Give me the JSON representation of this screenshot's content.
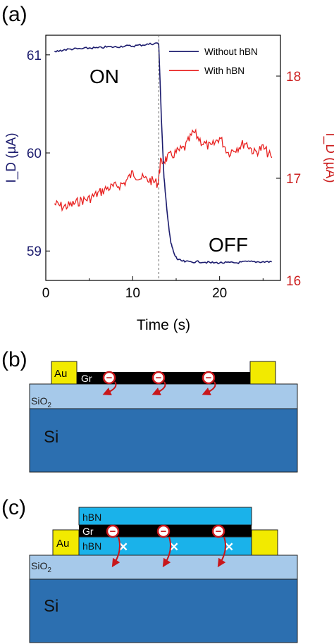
{
  "panel_labels": {
    "a": "(a)",
    "b": "(b)",
    "c": "(c)"
  },
  "colors": {
    "left_axis": "#1c1c6e",
    "right_axis": "#cc1f1f",
    "without_hbn": "#1c1c6e",
    "with_hbn": "#e8201f",
    "si": "#2c6fb0",
    "sio2": "#a6c9ea",
    "hbn": "#1ab2ea",
    "graphene": "#000000",
    "au": "#f2ea00",
    "electron": "#c8171b"
  },
  "chart_data": {
    "type": "line",
    "xlabel": "Time (s)",
    "ylabel_left": "I_D (µA)",
    "ylabel_right": "I_D (µA)",
    "xlim": [
      0,
      27
    ],
    "ylim_left": [
      58.7,
      61.2
    ],
    "ylim_right": [
      16.0,
      18.4
    ],
    "x_ticks": [
      "0",
      "10",
      "20"
    ],
    "y_left_ticks": [
      "59",
      "60",
      "61"
    ],
    "y_right_ticks": [
      "16",
      "17",
      "18"
    ],
    "annotations": {
      "on": "ON",
      "off": "OFF"
    },
    "switch_time": 13,
    "legend_position": "top-right",
    "series": [
      {
        "name": "Without hBN",
        "axis": "left",
        "x": [
          1,
          2,
          3,
          4,
          5,
          6,
          7,
          8,
          9,
          10,
          11,
          12,
          12.9,
          13.0,
          13.3,
          13.6,
          14.0,
          14.4,
          14.8,
          15.2,
          16,
          17,
          18,
          19,
          20,
          21,
          22,
          23,
          24,
          25,
          26
        ],
        "y": [
          61.03,
          61.05,
          61.06,
          61.06,
          61.07,
          61.07,
          61.08,
          61.08,
          61.09,
          61.09,
          61.1,
          61.11,
          61.12,
          61.1,
          60.35,
          59.75,
          59.35,
          59.08,
          58.96,
          58.91,
          58.89,
          58.89,
          58.89,
          58.88,
          58.88,
          58.88,
          58.88,
          58.89,
          58.89,
          58.89,
          58.89
        ]
      },
      {
        "name": "With hBN",
        "axis": "right",
        "x": [
          1,
          2,
          3,
          4,
          5,
          6,
          7,
          8,
          9,
          10,
          11,
          12,
          12.9,
          13.2,
          14,
          15,
          16,
          17,
          18,
          19,
          20,
          21,
          22,
          23,
          24,
          25,
          26
        ],
        "y": [
          16.75,
          16.72,
          16.74,
          16.78,
          16.8,
          16.85,
          16.9,
          16.92,
          16.95,
          17.05,
          17.0,
          16.98,
          16.95,
          17.15,
          17.2,
          17.25,
          17.3,
          17.45,
          17.35,
          17.3,
          17.4,
          17.25,
          17.3,
          17.35,
          17.25,
          17.3,
          17.2
        ]
      }
    ]
  },
  "diagram_b": {
    "au_label": "Au",
    "gr_label": "Gr",
    "sio2_label": "SiO",
    "sio2_sub": "2",
    "si_label": "Si",
    "electron_symbol": "−"
  },
  "diagram_c": {
    "hbn_top_label": "hBN",
    "gr_label": "Gr",
    "au_label": "Au",
    "hbn_bottom_label": "hBN",
    "sio2_label": "SiO",
    "sio2_sub": "2",
    "si_label": "Si",
    "electron_symbol": "−",
    "block_symbol": "✕"
  }
}
